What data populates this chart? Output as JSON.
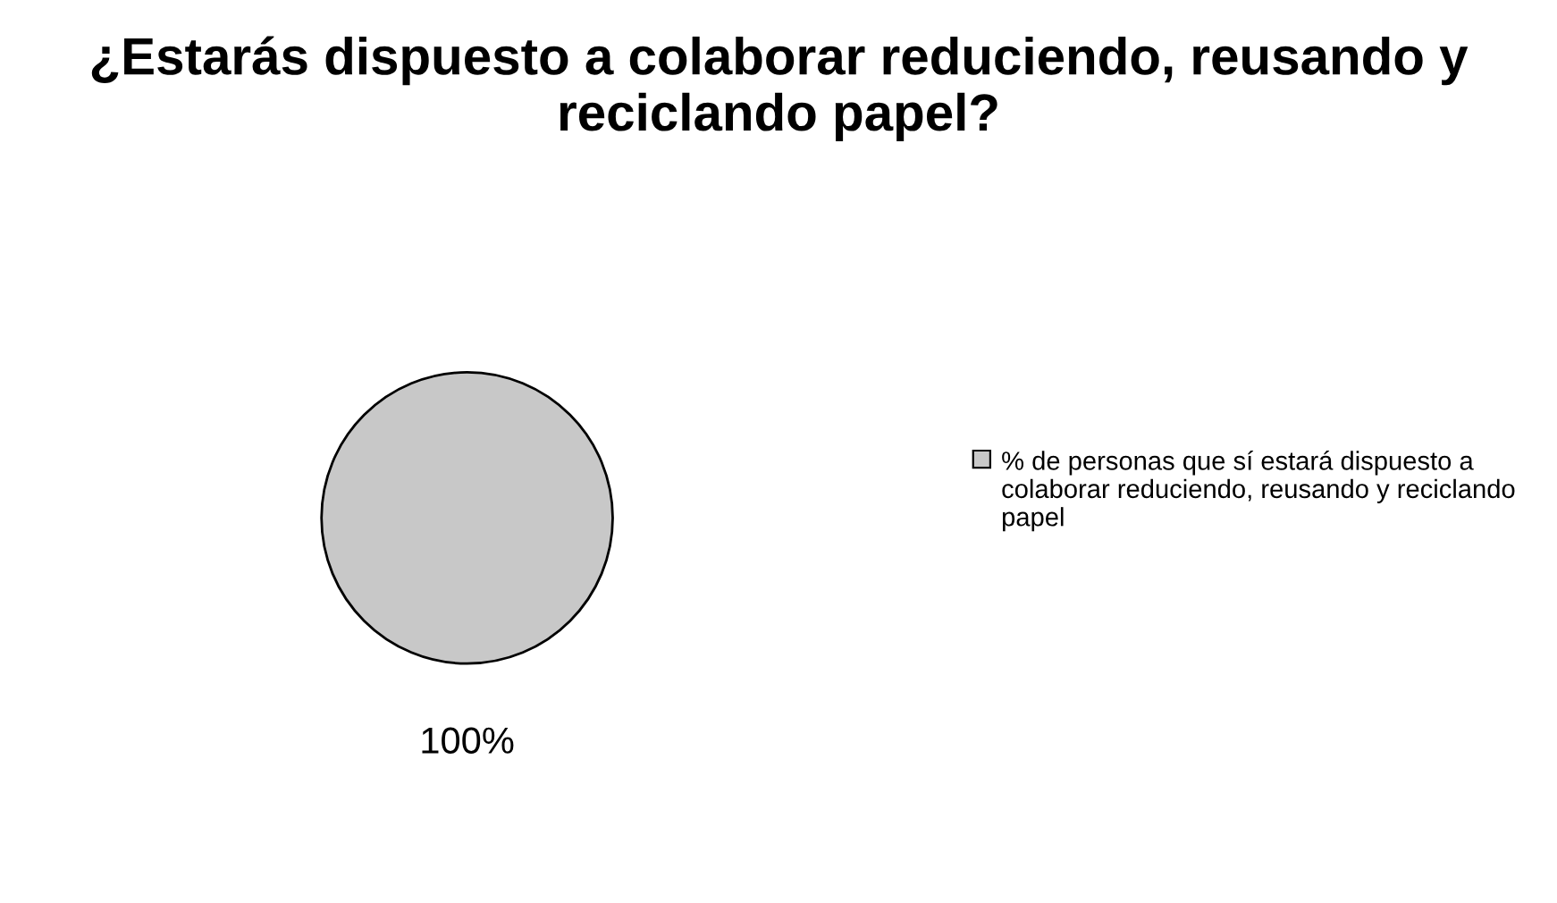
{
  "chart_data": {
    "type": "pie",
    "title": "¿Estarás dispuesto a colaborar reduciendo, reusando y reciclando papel?",
    "categories": [
      "% de personas que sí estará dispuesto a colaborar reduciendo, reusando y reciclando papel"
    ],
    "values": [
      100
    ],
    "colors": [
      "#c8c8c8"
    ],
    "value_labels": [
      "100%"
    ],
    "legend": "right"
  }
}
